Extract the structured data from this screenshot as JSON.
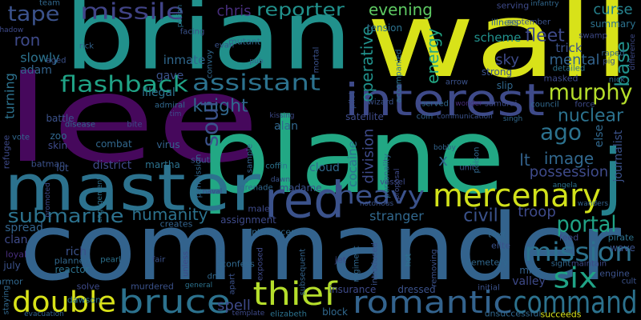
{
  "words": [
    {
      "text": "brian",
      "color": "#21918c"
    },
    {
      "text": "wall",
      "color": "#d8e219"
    },
    {
      "text": "lee",
      "color": "#46085c"
    },
    {
      "text": "plane",
      "color": "#22a884"
    },
    {
      "text": "commander",
      "color": "#33638d"
    },
    {
      "text": "master",
      "color": "#2c728e"
    },
    {
      "text": "interest",
      "color": "#3e4a89"
    },
    {
      "text": "red",
      "color": "#3b528b"
    },
    {
      "text": "mercenary",
      "color": "#d2e21b"
    },
    {
      "text": "j",
      "color": "#26828e"
    },
    {
      "text": "romantic",
      "color": "#33638d"
    },
    {
      "text": "command",
      "color": "#2c728e"
    },
    {
      "text": "bruce",
      "color": "#2c728e"
    },
    {
      "text": "thief",
      "color": "#b5de2b"
    },
    {
      "text": "double",
      "color": "#d8e219"
    },
    {
      "text": "six",
      "color": "#20a386"
    },
    {
      "text": "mission",
      "color": "#2c728e"
    },
    {
      "text": "missile",
      "color": "#414487"
    },
    {
      "text": "tape",
      "color": "#3b528b"
    },
    {
      "text": "team",
      "color": "#31688e"
    },
    {
      "text": "reporter",
      "color": "#21918c"
    },
    {
      "text": "chris",
      "color": "#472d7b"
    },
    {
      "text": "evening",
      "color": "#5ec962"
    },
    {
      "text": "fleet",
      "color": "#3e4a89"
    },
    {
      "text": "curse",
      "color": "#26828e"
    },
    {
      "text": "summary",
      "color": "#2c728e"
    },
    {
      "text": "scheme",
      "color": "#21918c"
    },
    {
      "text": "ron",
      "color": "#3e4a89"
    },
    {
      "text": "slowly",
      "color": "#2c728e"
    },
    {
      "text": "adam",
      "color": "#33638d"
    },
    {
      "text": "flashback",
      "color": "#20a386"
    },
    {
      "text": "assistant",
      "color": "#2c728e"
    },
    {
      "text": "inmate",
      "color": "#31688e"
    },
    {
      "text": "gave",
      "color": "#3b528b"
    },
    {
      "text": "knight",
      "color": "#31688e"
    },
    {
      "text": "murphy",
      "color": "#b5de2b"
    },
    {
      "text": "nuclear",
      "color": "#2c728e"
    },
    {
      "text": "ago",
      "color": "#2c728e"
    },
    {
      "text": "base",
      "color": "#21918c"
    },
    {
      "text": "mental",
      "color": "#33638d"
    },
    {
      "text": "trick",
      "color": "#3b528b"
    },
    {
      "text": "sky",
      "color": "#3e4a89"
    },
    {
      "text": "energy",
      "color": "#22a884"
    },
    {
      "text": "operative",
      "color": "#21918c"
    },
    {
      "text": "soul",
      "color": "#3b528b"
    },
    {
      "text": "alan",
      "color": "#31688e"
    },
    {
      "text": "cocaine",
      "color": "#2c728e"
    },
    {
      "text": "division",
      "color": "#3e4a89"
    },
    {
      "text": "heavy",
      "color": "#3b528b"
    },
    {
      "text": "image",
      "color": "#31688e"
    },
    {
      "text": "lt",
      "color": "#33638d"
    },
    {
      "text": "possession",
      "color": "#3e4a89"
    },
    {
      "text": "x",
      "color": "#31688e"
    },
    {
      "text": "portal",
      "color": "#20a386"
    },
    {
      "text": "civil",
      "color": "#3b528b"
    },
    {
      "text": "troop",
      "color": "#3e4a89"
    },
    {
      "text": "stranger",
      "color": "#31688e"
    },
    {
      "text": "humanity",
      "color": "#2c728e"
    },
    {
      "text": "submarine",
      "color": "#2c728e"
    },
    {
      "text": "turning",
      "color": "#2c728e"
    },
    {
      "text": "battle",
      "color": "#3b528b"
    },
    {
      "text": "zoo",
      "color": "#31688e"
    },
    {
      "text": "skin",
      "color": "#3e4a89"
    },
    {
      "text": "lot",
      "color": "#3b528b"
    },
    {
      "text": "combat",
      "color": "#31688e"
    },
    {
      "text": "virus",
      "color": "#33638d"
    },
    {
      "text": "district",
      "color": "#3e4a89"
    },
    {
      "text": "martha",
      "color": "#2c728e"
    },
    {
      "text": "batman",
      "color": "#3b528b"
    },
    {
      "text": "cloud",
      "color": "#31688e"
    },
    {
      "text": "spell",
      "color": "#3e4a89"
    },
    {
      "text": "rich",
      "color": "#3b528b"
    },
    {
      "text": "planned",
      "color": "#31688e"
    },
    {
      "text": "reactor",
      "color": "#2c728e"
    },
    {
      "text": "clan",
      "color": "#3e4a89"
    },
    {
      "text": "spread",
      "color": "#33638d"
    },
    {
      "text": "loyal",
      "color": "#472d7b"
    },
    {
      "text": "july",
      "color": "#3b528b"
    },
    {
      "text": "armor",
      "color": "#31688e"
    },
    {
      "text": "solve",
      "color": "#3e4a89"
    },
    {
      "text": "dawson",
      "color": "#2c728e"
    },
    {
      "text": "murdered",
      "color": "#3b528b"
    },
    {
      "text": "introduces",
      "color": "#31688e"
    },
    {
      "text": "assignment",
      "color": "#3e4a89"
    },
    {
      "text": "creates",
      "color": "#33638d"
    },
    {
      "text": "elite",
      "color": "#3b528b"
    },
    {
      "text": "text",
      "color": "#31688e"
    },
    {
      "text": "feed",
      "color": "#3e4a89"
    },
    {
      "text": "pirate",
      "color": "#2c728e"
    },
    {
      "text": "wave",
      "color": "#3b528b"
    },
    {
      "text": "cemetery",
      "color": "#31688e"
    },
    {
      "text": "valley",
      "color": "#3e4a89"
    },
    {
      "text": "miss",
      "color": "#33638d"
    },
    {
      "text": "engine",
      "color": "#3b528b"
    },
    {
      "text": "succeeds",
      "color": "#d8e219"
    },
    {
      "text": "unsuccessful",
      "color": "#31688e"
    },
    {
      "text": "insurance",
      "color": "#3e4a89"
    },
    {
      "text": "dressed",
      "color": "#3b528b"
    },
    {
      "text": "block",
      "color": "#31688e"
    },
    {
      "text": "elizabeth",
      "color": "#2c728e"
    },
    {
      "text": "journalist",
      "color": "#3b528b"
    },
    {
      "text": "else",
      "color": "#31688e"
    },
    {
      "text": "satellite",
      "color": "#3e4a89"
    },
    {
      "text": "coin",
      "color": "#33638d"
    },
    {
      "text": "communication",
      "color": "#3b528b"
    },
    {
      "text": "council",
      "color": "#31688e"
    },
    {
      "text": "force",
      "color": "#3e4a89"
    },
    {
      "text": "tension",
      "color": "#2c728e"
    },
    {
      "text": "september",
      "color": "#3b528b"
    },
    {
      "text": "infantry",
      "color": "#31688e"
    },
    {
      "text": "serving",
      "color": "#3e4a89"
    },
    {
      "text": "illness",
      "color": "#33638d"
    },
    {
      "text": "strong",
      "color": "#3b528b"
    },
    {
      "text": "slip",
      "color": "#31688e"
    },
    {
      "text": "masked",
      "color": "#3e4a89"
    },
    {
      "text": "detailed",
      "color": "#2c728e"
    },
    {
      "text": "wizard",
      "color": "#3b528b"
    },
    {
      "text": "served",
      "color": "#31688e"
    },
    {
      "text": "samurai",
      "color": "#3e4a89"
    },
    {
      "text": "wonder",
      "color": "#472d7b"
    },
    {
      "text": "arrow",
      "color": "#3b528b"
    },
    {
      "text": "admiral",
      "color": "#31688e"
    },
    {
      "text": "tim",
      "color": "#3e4a89"
    },
    {
      "text": "illegal",
      "color": "#2c728e"
    },
    {
      "text": "evan",
      "color": "#3b528b"
    },
    {
      "text": "mutant",
      "color": "#31688e"
    },
    {
      "text": "shadow",
      "color": "#3e4a89"
    },
    {
      "text": "rick",
      "color": "#33638d"
    },
    {
      "text": "aged",
      "color": "#3b528b"
    },
    {
      "text": "vote",
      "color": "#31688e"
    },
    {
      "text": "refugee",
      "color": "#3e4a89"
    },
    {
      "text": "coffin",
      "color": "#2c728e"
    },
    {
      "text": "madame",
      "color": "#3b528b"
    },
    {
      "text": "grenade",
      "color": "#31688e"
    },
    {
      "text": "vessel",
      "color": "#3e4a89"
    },
    {
      "text": "bobby",
      "color": "#33638d"
    },
    {
      "text": "unit",
      "color": "#3b528b"
    },
    {
      "text": "poison",
      "color": "#31688e"
    },
    {
      "text": "male",
      "color": "#3e4a89"
    },
    {
      "text": "pearl",
      "color": "#2c728e"
    },
    {
      "text": "fair",
      "color": "#3b528b"
    },
    {
      "text": "confess",
      "color": "#31688e"
    },
    {
      "text": "exposed",
      "color": "#3e4a89"
    },
    {
      "text": "subsequent",
      "color": "#33638d"
    },
    {
      "text": "introduced",
      "color": "#3b528b"
    },
    {
      "text": "regiment",
      "color": "#31688e"
    },
    {
      "text": "jet",
      "color": "#3e4a89"
    },
    {
      "text": "hot",
      "color": "#2c728e"
    },
    {
      "text": "removing",
      "color": "#3b528b"
    },
    {
      "text": "dna",
      "color": "#31688e"
    },
    {
      "text": "naval",
      "color": "#3e4a89"
    },
    {
      "text": "sample",
      "color": "#33638d"
    },
    {
      "text": "shut",
      "color": "#3b528b"
    },
    {
      "text": "permission",
      "color": "#31688e"
    },
    {
      "text": "kissing",
      "color": "#3e4a89"
    },
    {
      "text": "angela",
      "color": "#2c728e"
    },
    {
      "text": "cult",
      "color": "#3b528b"
    },
    {
      "text": "staying",
      "color": "#31688e"
    },
    {
      "text": "template",
      "color": "#3e4a89"
    },
    {
      "text": "evacuation",
      "color": "#33638d"
    },
    {
      "text": "initial",
      "color": "#3b528b"
    },
    {
      "text": "sight",
      "color": "#31688e"
    },
    {
      "text": "maintain",
      "color": "#3e4a89"
    },
    {
      "text": "general",
      "color": "#2c728e"
    },
    {
      "text": "apart",
      "color": "#3b528b"
    },
    {
      "text": "cavalry",
      "color": "#31688e"
    },
    {
      "text": "unless",
      "color": "#3e4a89"
    },
    {
      "text": "pub",
      "color": "#33638d"
    },
    {
      "text": "mortal",
      "color": "#3b528b"
    },
    {
      "text": "disease",
      "color": "#31688e"
    },
    {
      "text": "bite",
      "color": "#3e4a89"
    },
    {
      "text": "potion",
      "color": "#2c728e"
    },
    {
      "text": "facing",
      "color": "#3b528b"
    },
    {
      "text": "convoy",
      "color": "#31688e"
    },
    {
      "text": "swamp",
      "color": "#3e4a89"
    },
    {
      "text": "raped",
      "color": "#33638d"
    },
    {
      "text": "pig",
      "color": "#3b528b"
    },
    {
      "text": "nick",
      "color": "#31688e"
    },
    {
      "text": "difference",
      "color": "#3e4a89"
    },
    {
      "text": "accompanied",
      "color": "#2c728e"
    },
    {
      "text": "pilot",
      "color": "#3b528b"
    },
    {
      "text": "personality",
      "color": "#31688e"
    },
    {
      "text": "proposal",
      "color": "#3e4a89"
    },
    {
      "text": "wanders",
      "color": "#33638d"
    },
    {
      "text": "notorious",
      "color": "#3b528b"
    },
    {
      "text": "singh",
      "color": "#31688e"
    },
    {
      "text": "promoted",
      "color": "#3e4a89"
    },
    {
      "text": "engagement",
      "color": "#2c728e"
    },
    {
      "text": "dawn",
      "color": "#3b528b"
    }
  ]
}
